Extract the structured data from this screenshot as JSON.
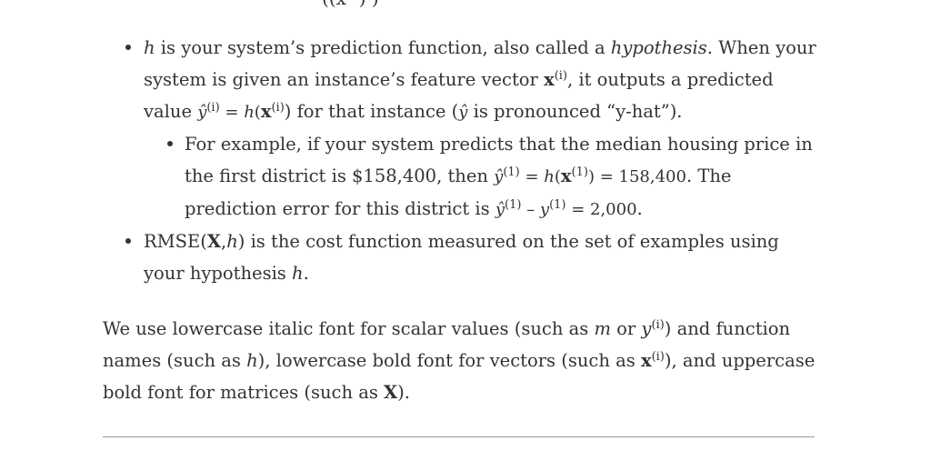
{
  "cutoff_formula": "((x⁽ⁱ⁾) )",
  "bullets": {
    "h": {
      "var": "h",
      "t1": " is your system’s prediction function, also called a ",
      "term": "hypothesis",
      "t2": ". When your system is given an instance’s feature vector ",
      "vec": "x",
      "sup": "(i)",
      "t3": ", it outputs a predicted value ",
      "yhat": "ŷ",
      "eq1": " = ",
      "func": "h",
      "t4": "(",
      "t5": ") for that instance (",
      "t6": " is pronounced “y-hat”)."
    },
    "example": {
      "t1": "For example, if your system predicts that the median housing price in the first district is $158,400, then ",
      "yhat": "ŷ",
      "sup1": "(1)",
      "eq": " = ",
      "func": "h",
      "t2": "(",
      "vec": "x",
      "t3": ") = 158,400",
      "t4": ". The prediction error for this district is ",
      "minus": " – ",
      "y": "y",
      "result": " = 2,000",
      "t5": "."
    },
    "rmse": {
      "t1": "RMSE(",
      "mat": "X",
      "comma": ",",
      "func": "h",
      "t2": ") is the cost function measured on the set of examples using your hypothesis ",
      "t3": "."
    }
  },
  "paragraph": {
    "t1": "We use lowercase italic font for scalar values (such as ",
    "m": "m",
    "or": " or ",
    "y": "y",
    "sup": "(i)",
    "t2": ") and function names (such as ",
    "h": "h",
    "t3": "), lowercase bold font for vectors (such as ",
    "x": "x",
    "t4": "), and uppercase bold font for matrices (such as ",
    "X": "X",
    "t5": ")."
  }
}
